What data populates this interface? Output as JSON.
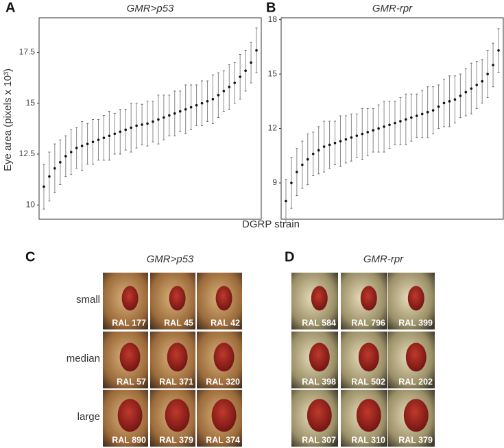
{
  "shared_axes": {
    "y_label": "Eye area (pixels x 10³)",
    "x_label": "DGRP strain"
  },
  "chart_data": [
    {
      "type": "errorbar",
      "panel_label": "A",
      "title": "GMR>p53",
      "categories": [
        null,
        null,
        null,
        null,
        null,
        null,
        null,
        null,
        null,
        null,
        null,
        null,
        null,
        null,
        null,
        null,
        null,
        null,
        null,
        null,
        null,
        null,
        null,
        null,
        null,
        null,
        null,
        null,
        null,
        null,
        null,
        null,
        null,
        null,
        null,
        null,
        null,
        null,
        null,
        null
      ],
      "series": [
        {
          "color": "#111111",
          "values": [
            10.9,
            11.4,
            11.8,
            12.1,
            12.4,
            12.6,
            12.8,
            12.9,
            13.0,
            13.1,
            13.2,
            13.3,
            13.4,
            13.5,
            13.6,
            13.7,
            13.8,
            13.9,
            13.95,
            14.0,
            14.1,
            14.2,
            14.3,
            14.4,
            14.5,
            14.6,
            14.7,
            14.8,
            14.9,
            15.0,
            15.1,
            15.2,
            15.4,
            15.6,
            15.8,
            16.0,
            16.3,
            16.6,
            17.0,
            17.6
          ],
          "errors": [
            1.1,
            1.2,
            1.2,
            1.1,
            1.0,
            1.1,
            1.0,
            1.2,
            1.0,
            1.1,
            1.0,
            1.1,
            1.2,
            1.0,
            1.1,
            1.0,
            1.2,
            1.1,
            1.0,
            1.1,
            1.0,
            1.2,
            1.1,
            1.0,
            1.1,
            1.0,
            1.2,
            1.1,
            1.0,
            1.1,
            1.0,
            1.2,
            1.1,
            1.0,
            1.1,
            1.0,
            1.1,
            1.0,
            1.0,
            1.1
          ]
        }
      ],
      "ylim": [
        9.3,
        19.2
      ],
      "yticks": [
        10,
        12.5,
        15,
        17.5
      ]
    },
    {
      "type": "errorbar",
      "panel_label": "B",
      "title": "GMR-rpr",
      "categories": [
        null,
        null,
        null,
        null,
        null,
        null,
        null,
        null,
        null,
        null,
        null,
        null,
        null,
        null,
        null,
        null,
        null,
        null,
        null,
        null,
        null,
        null,
        null,
        null,
        null,
        null,
        null,
        null,
        null,
        null,
        null,
        null,
        null,
        null,
        null,
        null,
        null,
        null,
        null,
        null
      ],
      "series": [
        {
          "color": "#111111",
          "values": [
            8.0,
            9.0,
            9.6,
            10.0,
            10.3,
            10.6,
            10.8,
            11.0,
            11.1,
            11.2,
            11.3,
            11.4,
            11.5,
            11.6,
            11.7,
            11.8,
            11.9,
            12.0,
            12.1,
            12.2,
            12.3,
            12.4,
            12.5,
            12.6,
            12.7,
            12.8,
            12.9,
            13.0,
            13.2,
            13.4,
            13.5,
            13.6,
            13.8,
            14.0,
            14.2,
            14.4,
            14.6,
            15.0,
            15.5,
            16.3
          ],
          "errors": [
            1.2,
            1.4,
            1.3,
            1.3,
            1.4,
            1.2,
            1.3,
            1.4,
            1.3,
            1.2,
            1.4,
            1.3,
            1.3,
            1.2,
            1.4,
            1.3,
            1.2,
            1.3,
            1.4,
            1.3,
            1.2,
            1.3,
            1.4,
            1.3,
            1.2,
            1.3,
            1.4,
            1.3,
            1.2,
            1.3,
            1.4,
            1.3,
            1.2,
            1.3,
            1.4,
            1.3,
            1.2,
            1.3,
            1.2,
            1.2
          ]
        }
      ],
      "ylim": [
        7.0,
        18.1
      ],
      "yticks": [
        9,
        12,
        15,
        18
      ]
    }
  ],
  "panels": [
    {
      "panel_label": "C",
      "title": "GMR>p53",
      "rows": [
        {
          "label": "small",
          "images": [
            "RAL 177",
            "RAL 45",
            "RAL 42"
          ]
        },
        {
          "label": "median",
          "images": [
            "RAL 57",
            "RAL 371",
            "RAL 320"
          ]
        },
        {
          "label": "large",
          "images": [
            "RAL 890",
            "RAL 379",
            "RAL 374"
          ]
        }
      ]
    },
    {
      "panel_label": "D",
      "title": "GMR-rpr",
      "rows": [
        {
          "images": [
            "RAL 584",
            "RAL 796",
            "RAL 399"
          ]
        },
        {
          "images": [
            "RAL 398",
            "RAL 502",
            "RAL 202"
          ]
        },
        {
          "images": [
            "RAL 307",
            "RAL 310",
            "RAL 379"
          ]
        }
      ]
    }
  ]
}
